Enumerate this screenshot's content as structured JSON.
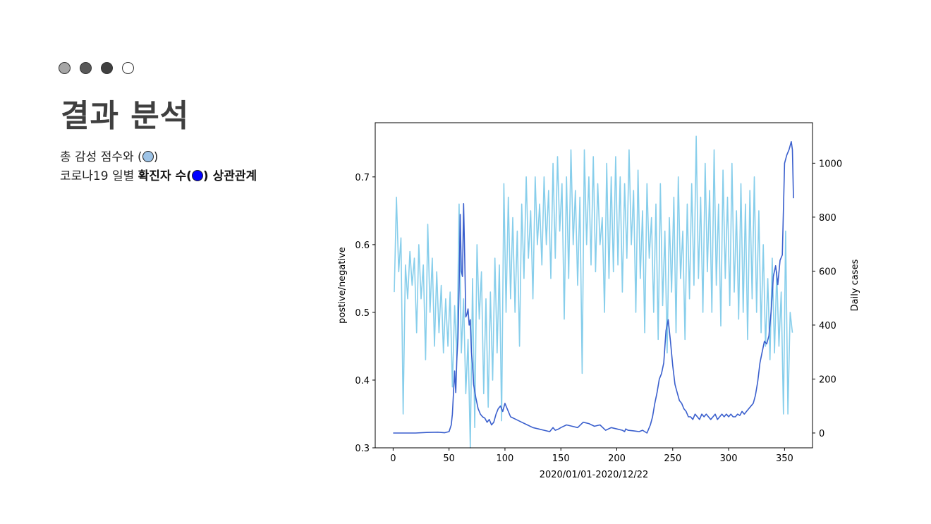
{
  "slide": {
    "dot_colors": [
      "#a6a6a6",
      "#595959",
      "#404040",
      "#ffffff"
    ],
    "title": "결과 분석",
    "line1_text": "총 감성 점수와 (",
    "line1_close": ")",
    "line1_marker_color": "#9dc3e6",
    "line2_prefix": "코로나19 일별 ",
    "line2_bold": "확진자 수(",
    "line2_marker_color": "#0000ff",
    "line2_suffix": ") 상관관계"
  },
  "chart_data": {
    "type": "line",
    "xlabel": "2020/01/01-2020/12/22",
    "ylabel_left": "postive/negative",
    "ylabel_right": "Daily cases",
    "x_ticks": [
      0,
      50,
      100,
      150,
      200,
      250,
      300,
      350
    ],
    "y_left_ticks": [
      0.3,
      0.4,
      0.5,
      0.6,
      0.7
    ],
    "y_right_ticks": [
      0,
      200,
      400,
      600,
      800,
      1000
    ],
    "xlim": [
      -16,
      375
    ],
    "ylim_left": [
      0.3,
      0.78
    ],
    "ylim_right": [
      -55,
      1150
    ],
    "series": [
      {
        "axis": "left",
        "color": "#87ceeb",
        "x": [
          1,
          3,
          5,
          7,
          9,
          11,
          13,
          15,
          17,
          19,
          21,
          23,
          25,
          27,
          29,
          31,
          33,
          35,
          37,
          39,
          41,
          43,
          45,
          47,
          49,
          51,
          53,
          55,
          57,
          59,
          61,
          63,
          65,
          67,
          69,
          71,
          73,
          75,
          77,
          79,
          81,
          83,
          85,
          87,
          89,
          91,
          93,
          95,
          97,
          99,
          101,
          103,
          105,
          107,
          109,
          111,
          113,
          115,
          117,
          119,
          121,
          123,
          125,
          127,
          129,
          131,
          133,
          135,
          137,
          139,
          141,
          143,
          145,
          147,
          149,
          151,
          153,
          155,
          157,
          159,
          161,
          163,
          165,
          167,
          169,
          171,
          173,
          175,
          177,
          179,
          181,
          183,
          185,
          187,
          189,
          191,
          193,
          195,
          197,
          199,
          201,
          203,
          205,
          207,
          209,
          211,
          213,
          215,
          217,
          219,
          221,
          223,
          225,
          227,
          229,
          231,
          233,
          235,
          237,
          239,
          241,
          243,
          245,
          247,
          249,
          251,
          253,
          255,
          257,
          259,
          261,
          263,
          265,
          267,
          269,
          271,
          273,
          275,
          277,
          279,
          281,
          283,
          285,
          287,
          289,
          291,
          293,
          295,
          297,
          299,
          301,
          303,
          305,
          307,
          309,
          311,
          313,
          315,
          317,
          319,
          321,
          323,
          325,
          327,
          329,
          331,
          333,
          335,
          337,
          339,
          341,
          343,
          345,
          347,
          349,
          351,
          353,
          355,
          357
        ],
        "values": [
          0.53,
          0.67,
          0.56,
          0.61,
          0.35,
          0.57,
          0.52,
          0.59,
          0.54,
          0.58,
          0.47,
          0.6,
          0.52,
          0.57,
          0.43,
          0.63,
          0.5,
          0.58,
          0.45,
          0.56,
          0.47,
          0.54,
          0.44,
          0.52,
          0.45,
          0.53,
          0.39,
          0.51,
          0.43,
          0.66,
          0.44,
          0.52,
          0.38,
          0.46,
          0.3,
          0.55,
          0.33,
          0.6,
          0.49,
          0.56,
          0.38,
          0.52,
          0.36,
          0.53,
          0.4,
          0.58,
          0.44,
          0.57,
          0.34,
          0.69,
          0.5,
          0.67,
          0.52,
          0.64,
          0.5,
          0.62,
          0.45,
          0.66,
          0.55,
          0.7,
          0.58,
          0.65,
          0.52,
          0.7,
          0.6,
          0.66,
          0.57,
          0.7,
          0.6,
          0.68,
          0.55,
          0.72,
          0.58,
          0.73,
          0.62,
          0.69,
          0.49,
          0.7,
          0.55,
          0.74,
          0.6,
          0.68,
          0.54,
          0.67,
          0.41,
          0.74,
          0.6,
          0.7,
          0.57,
          0.73,
          0.56,
          0.69,
          0.6,
          0.64,
          0.5,
          0.72,
          0.55,
          0.7,
          0.56,
          0.73,
          0.57,
          0.7,
          0.53,
          0.69,
          0.58,
          0.74,
          0.6,
          0.68,
          0.5,
          0.71,
          0.55,
          0.65,
          0.47,
          0.69,
          0.58,
          0.64,
          0.5,
          0.66,
          0.46,
          0.69,
          0.51,
          0.62,
          0.44,
          0.64,
          0.53,
          0.67,
          0.47,
          0.7,
          0.55,
          0.62,
          0.46,
          0.66,
          0.52,
          0.69,
          0.54,
          0.76,
          0.55,
          0.67,
          0.5,
          0.72,
          0.56,
          0.68,
          0.5,
          0.74,
          0.54,
          0.66,
          0.48,
          0.71,
          0.55,
          0.67,
          0.51,
          0.72,
          0.53,
          0.65,
          0.49,
          0.69,
          0.5,
          0.66,
          0.46,
          0.68,
          0.52,
          0.7,
          0.5,
          0.65,
          0.47,
          0.6,
          0.45,
          0.55,
          0.43,
          0.58,
          0.44,
          0.56,
          0.45,
          0.53,
          0.35,
          0.62,
          0.35,
          0.5,
          0.47
        ]
      },
      {
        "axis": "right",
        "color": "#3a5fcd",
        "x": [
          0,
          10,
          20,
          30,
          40,
          46,
          50,
          52,
          53,
          54,
          55,
          56,
          57,
          58,
          59,
          60,
          61,
          62,
          63,
          64,
          65,
          66,
          67,
          68,
          69,
          70,
          71,
          72,
          74,
          76,
          78,
          80,
          82,
          84,
          86,
          88,
          90,
          92,
          94,
          96,
          98,
          100,
          105,
          110,
          115,
          120,
          125,
          130,
          135,
          140,
          143,
          145,
          148,
          150,
          155,
          160,
          165,
          170,
          175,
          180,
          185,
          190,
          195,
          200,
          205,
          207,
          208,
          210,
          215,
          220,
          223,
          225,
          227,
          229,
          230,
          232,
          234,
          236,
          238,
          240,
          242,
          244,
          246,
          248,
          250,
          252,
          254,
          256,
          258,
          260,
          262,
          264,
          266,
          268,
          270,
          272,
          274,
          276,
          278,
          280,
          282,
          284,
          286,
          288,
          290,
          292,
          294,
          296,
          298,
          300,
          302,
          304,
          306,
          308,
          310,
          312,
          314,
          316,
          318,
          320,
          322,
          324,
          326,
          328,
          330,
          332,
          334,
          336,
          338,
          340,
          342,
          344,
          346,
          348,
          350,
          352,
          354,
          356,
          357,
          358
        ],
        "values": [
          0,
          0,
          0,
          2,
          3,
          1,
          5,
          30,
          70,
          150,
          230,
          150,
          280,
          350,
          530,
          810,
          600,
          580,
          850,
          650,
          430,
          440,
          460,
          400,
          420,
          300,
          250,
          180,
          130,
          90,
          70,
          60,
          55,
          40,
          50,
          30,
          40,
          70,
          90,
          100,
          80,
          110,
          60,
          50,
          40,
          30,
          20,
          15,
          10,
          5,
          20,
          10,
          15,
          20,
          30,
          25,
          20,
          40,
          35,
          25,
          30,
          10,
          20,
          15,
          10,
          5,
          15,
          10,
          8,
          5,
          10,
          5,
          0,
          20,
          30,
          60,
          110,
          150,
          200,
          220,
          260,
          380,
          420,
          340,
          250,
          180,
          150,
          120,
          110,
          90,
          80,
          60,
          60,
          50,
          70,
          60,
          50,
          70,
          60,
          70,
          60,
          50,
          60,
          70,
          50,
          60,
          70,
          60,
          70,
          60,
          70,
          60,
          60,
          70,
          65,
          80,
          70,
          80,
          90,
          100,
          110,
          140,
          190,
          260,
          300,
          340,
          330,
          360,
          450,
          580,
          620,
          550,
          640,
          660,
          1000,
          1030,
          1050,
          1080,
          1050,
          870
        ]
      }
    ]
  }
}
